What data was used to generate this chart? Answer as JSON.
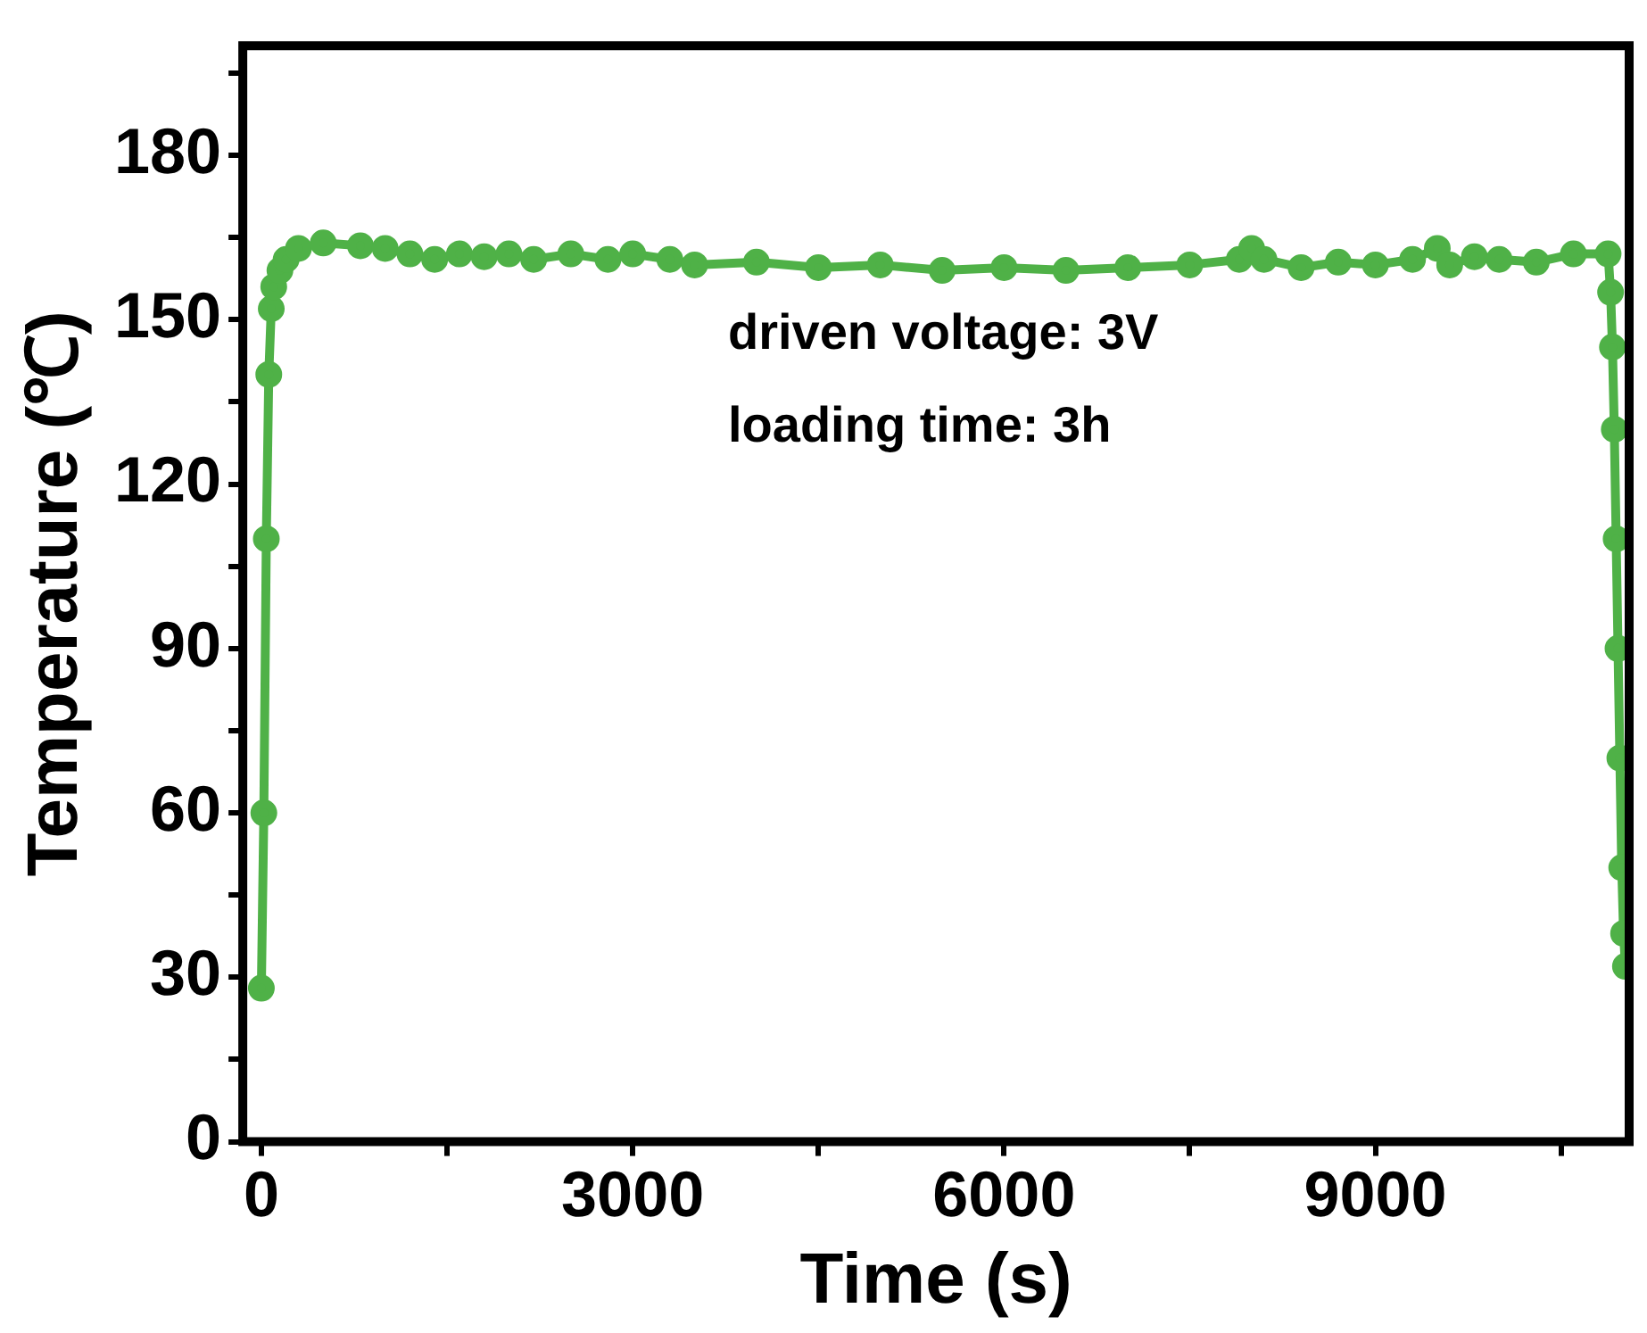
{
  "chart_data": {
    "type": "line",
    "xlabel": "Time (s)",
    "ylabel": "Temperature (℃)",
    "annotations": [
      "driven voltage: 3V",
      "loading time: 3h"
    ],
    "xlim": [
      -150,
      11050
    ],
    "xticks": [
      0,
      {
        "value": 1500,
        "label": null
      },
      3000,
      {
        "value": 4500,
        "label": null
      },
      6000,
      {
        "value": 7500,
        "label": null
      },
      9000,
      {
        "value": 10500,
        "label": null
      }
    ],
    "ylim": [
      0,
      200
    ],
    "yticks": [
      0,
      {
        "value": 15,
        "label": null
      },
      30,
      {
        "value": 45,
        "label": null
      },
      60,
      {
        "value": 75,
        "label": null
      },
      90,
      {
        "value": 105,
        "label": null
      },
      120,
      {
        "value": 135,
        "label": null
      },
      150,
      {
        "value": 165,
        "label": null
      },
      180,
      {
        "value": 195,
        "label": null
      }
    ],
    "grid": false,
    "legend": false,
    "marker": "circle",
    "line_style": "solid",
    "series": [
      {
        "color": "#4fb147",
        "x": [
          0,
          20,
          40,
          60,
          80,
          100,
          150,
          200,
          300,
          500,
          800,
          1000,
          1200,
          1400,
          1600,
          1800,
          2000,
          2200,
          2500,
          2800,
          3000,
          3300,
          3500,
          4000,
          4500,
          5000,
          5500,
          6000,
          6500,
          7000,
          7500,
          7900,
          8000,
          8100,
          8400,
          8700,
          9000,
          9300,
          9500,
          9600,
          9800,
          10000,
          10300,
          10600,
          10880,
          10900,
          10915,
          10930,
          10945,
          10960,
          10975,
          10990,
          11005,
          11020
        ],
        "values": [
          28,
          60,
          110,
          140,
          152,
          156,
          159,
          161,
          163,
          164,
          163.5,
          163,
          162,
          161,
          162,
          161.5,
          162,
          161,
          162,
          161,
          162,
          161,
          160,
          160.5,
          159.5,
          160,
          159,
          159.5,
          159,
          159.5,
          160,
          161,
          163,
          161,
          159.5,
          160.5,
          160,
          161,
          163,
          160,
          161.5,
          161,
          160.5,
          162,
          162,
          155,
          145,
          130,
          110,
          90,
          70,
          50,
          38,
          32
        ]
      }
    ]
  }
}
